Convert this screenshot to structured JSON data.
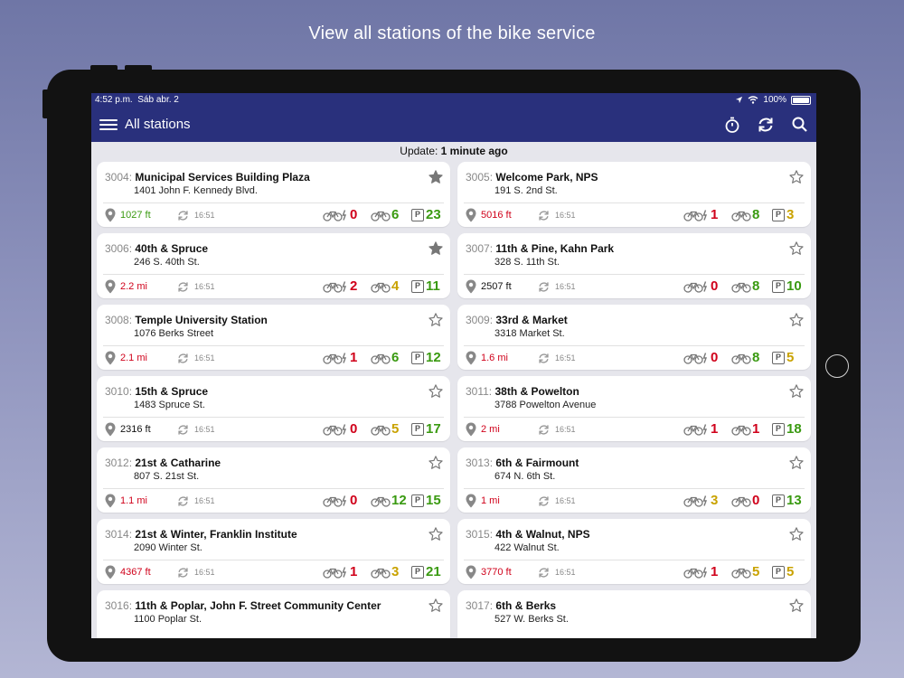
{
  "caption": "View all stations of the bike service",
  "status_bar": {
    "time": "4:52 p.m.",
    "date": "Sáb abr. 2",
    "battery": "100%"
  },
  "app_bar": {
    "title": "All stations",
    "icons": [
      "menu-icon",
      "timer-icon",
      "refresh-icon",
      "search-icon"
    ]
  },
  "update": {
    "label": "Update:",
    "value": "1 minute ago"
  },
  "colors": {
    "bar": "#29307c",
    "red": "#d0021b",
    "green": "#3a9a11",
    "yellow": "#c9a200"
  },
  "stations": [
    {
      "id": "3004:",
      "name": "Municipal Services Building Plaza",
      "address": "1401 John F. Kennedy Blvd.",
      "distance": "1027 ft",
      "distance_color": "green",
      "updated": "16:51",
      "favorite": true,
      "ebikes": "0",
      "ebikes_color": "red",
      "bikes": "6",
      "bikes_color": "green",
      "docks": "23",
      "docks_color": "green"
    },
    {
      "id": "3005:",
      "name": "Welcome Park, NPS",
      "address": "191 S. 2nd St.",
      "distance": "5016 ft",
      "distance_color": "red",
      "updated": "16:51",
      "favorite": false,
      "ebikes": "1",
      "ebikes_color": "red",
      "bikes": "8",
      "bikes_color": "green",
      "docks": "3",
      "docks_color": "yellow"
    },
    {
      "id": "3006:",
      "name": "40th & Spruce",
      "address": "246 S. 40th St.",
      "distance": "2.2 mi",
      "distance_color": "red",
      "updated": "16:51",
      "favorite": true,
      "ebikes": "2",
      "ebikes_color": "red",
      "bikes": "4",
      "bikes_color": "yellow",
      "docks": "11",
      "docks_color": "green"
    },
    {
      "id": "3007:",
      "name": "11th & Pine, Kahn Park",
      "address": "328 S. 11th St.",
      "distance": "2507 ft",
      "distance_color": "black",
      "updated": "16:51",
      "favorite": false,
      "ebikes": "0",
      "ebikes_color": "red",
      "bikes": "8",
      "bikes_color": "green",
      "docks": "10",
      "docks_color": "green"
    },
    {
      "id": "3008:",
      "name": "Temple University Station",
      "address": "1076 Berks Street",
      "distance": "2.1 mi",
      "distance_color": "red",
      "updated": "16:51",
      "favorite": false,
      "ebikes": "1",
      "ebikes_color": "red",
      "bikes": "6",
      "bikes_color": "green",
      "docks": "12",
      "docks_color": "green"
    },
    {
      "id": "3009:",
      "name": "33rd & Market",
      "address": "3318 Market St.",
      "distance": "1.6 mi",
      "distance_color": "red",
      "updated": "16:51",
      "favorite": false,
      "ebikes": "0",
      "ebikes_color": "red",
      "bikes": "8",
      "bikes_color": "green",
      "docks": "5",
      "docks_color": "yellow"
    },
    {
      "id": "3010:",
      "name": "15th & Spruce",
      "address": "1483 Spruce St.",
      "distance": "2316 ft",
      "distance_color": "black",
      "updated": "16:51",
      "favorite": false,
      "ebikes": "0",
      "ebikes_color": "red",
      "bikes": "5",
      "bikes_color": "yellow",
      "docks": "17",
      "docks_color": "green"
    },
    {
      "id": "3011:",
      "name": "38th & Powelton",
      "address": "3788 Powelton Avenue",
      "distance": "2 mi",
      "distance_color": "red",
      "updated": "16:51",
      "favorite": false,
      "ebikes": "1",
      "ebikes_color": "red",
      "bikes": "1",
      "bikes_color": "red",
      "docks": "18",
      "docks_color": "green"
    },
    {
      "id": "3012:",
      "name": "21st & Catharine",
      "address": "807 S. 21st St.",
      "distance": "1.1 mi",
      "distance_color": "red",
      "updated": "16:51",
      "favorite": false,
      "ebikes": "0",
      "ebikes_color": "red",
      "bikes": "12",
      "bikes_color": "green",
      "docks": "15",
      "docks_color": "green"
    },
    {
      "id": "3013:",
      "name": "6th & Fairmount",
      "address": "674 N. 6th St.",
      "distance": "1 mi",
      "distance_color": "red",
      "updated": "16:51",
      "favorite": false,
      "ebikes": "3",
      "ebikes_color": "yellow",
      "bikes": "0",
      "bikes_color": "red",
      "docks": "13",
      "docks_color": "green"
    },
    {
      "id": "3014:",
      "name": "21st & Winter, Franklin Institute",
      "address": "2090 Winter St.",
      "distance": "4367 ft",
      "distance_color": "red",
      "updated": "16:51",
      "favorite": false,
      "ebikes": "1",
      "ebikes_color": "red",
      "bikes": "3",
      "bikes_color": "yellow",
      "docks": "21",
      "docks_color": "green"
    },
    {
      "id": "3015:",
      "name": "4th & Walnut, NPS",
      "address": "422 Walnut St.",
      "distance": "3770 ft",
      "distance_color": "red",
      "updated": "16:51",
      "favorite": false,
      "ebikes": "1",
      "ebikes_color": "red",
      "bikes": "5",
      "bikes_color": "yellow",
      "docks": "5",
      "docks_color": "yellow"
    },
    {
      "id": "3016:",
      "name": "11th & Poplar, John F. Street Community Center",
      "address": "1100 Poplar St.",
      "favorite": false
    },
    {
      "id": "3017:",
      "name": "6th & Berks",
      "address": "527 W. Berks St.",
      "favorite": false
    }
  ]
}
